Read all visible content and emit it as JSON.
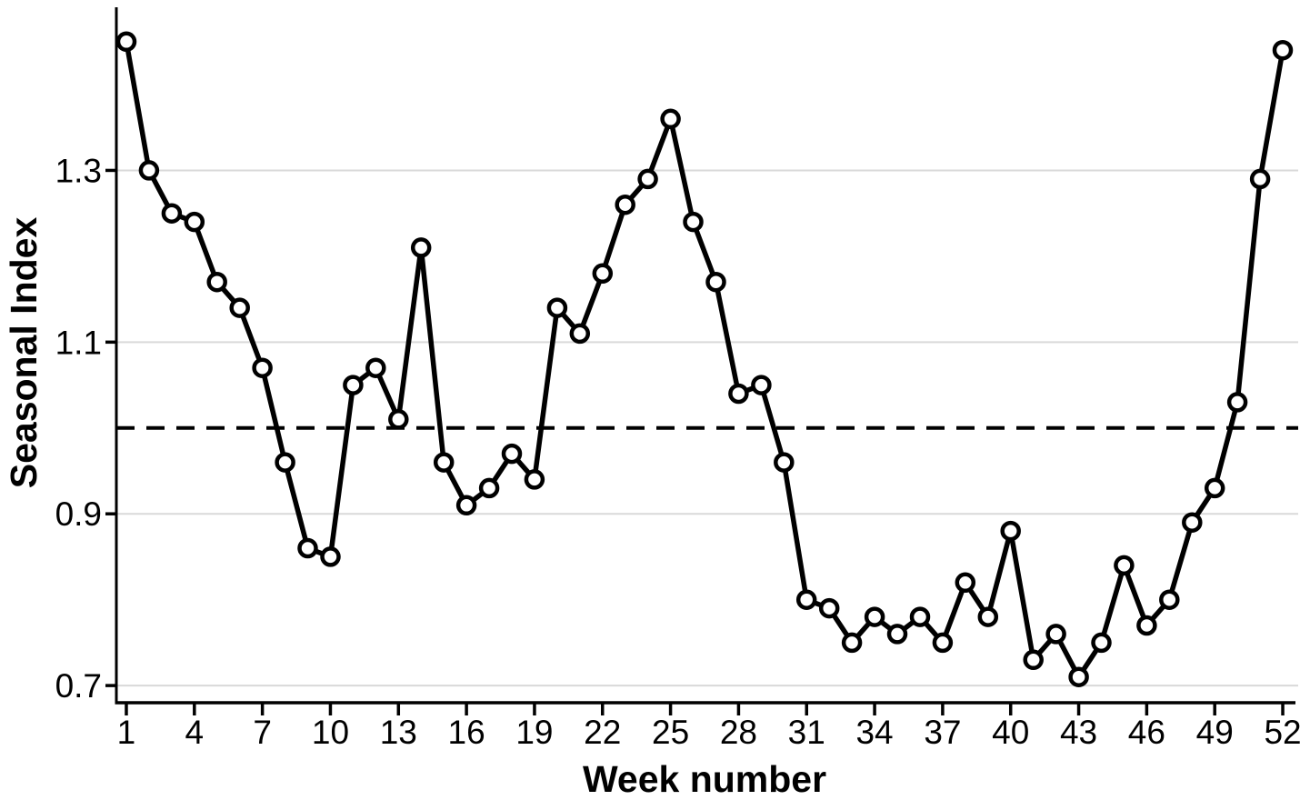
{
  "chart_data": {
    "type": "line",
    "title": "",
    "xlabel": "Week number",
    "ylabel": "Seasonal Index",
    "x": [
      1,
      2,
      3,
      4,
      5,
      6,
      7,
      8,
      9,
      10,
      11,
      12,
      13,
      14,
      15,
      16,
      17,
      18,
      19,
      20,
      21,
      22,
      23,
      24,
      25,
      26,
      27,
      28,
      29,
      30,
      31,
      32,
      33,
      34,
      35,
      36,
      37,
      38,
      39,
      40,
      41,
      42,
      43,
      44,
      45,
      46,
      47,
      48,
      49,
      50,
      51,
      52
    ],
    "series": [
      {
        "name": "Seasonal Index",
        "values": [
          1.45,
          1.3,
          1.25,
          1.24,
          1.17,
          1.14,
          1.07,
          0.96,
          0.86,
          0.85,
          1.05,
          1.07,
          1.01,
          1.21,
          0.96,
          0.91,
          0.93,
          0.97,
          0.94,
          1.14,
          1.11,
          1.18,
          1.26,
          1.29,
          1.36,
          1.24,
          1.17,
          1.04,
          1.05,
          0.96,
          0.8,
          0.79,
          0.75,
          0.78,
          0.76,
          0.78,
          0.75,
          0.82,
          0.78,
          0.88,
          0.73,
          0.76,
          0.71,
          0.75,
          0.84,
          0.77,
          0.8,
          0.89,
          0.93,
          1.03,
          1.29,
          1.44
        ]
      }
    ],
    "reference_line": {
      "value": 1.0,
      "style": "dashed"
    },
    "x_ticks": [
      1,
      4,
      7,
      10,
      13,
      16,
      19,
      22,
      25,
      28,
      31,
      34,
      37,
      40,
      43,
      46,
      49,
      52
    ],
    "x_tick_labels": [
      "1",
      "4",
      "7",
      "10",
      "13",
      "16",
      "19",
      "22",
      "25",
      "28",
      "31",
      "34",
      "37",
      "40",
      "43",
      "46",
      "49",
      "52"
    ],
    "y_ticks": [
      0.7,
      0.9,
      1.1,
      1.3
    ],
    "y_tick_labels": [
      "0.7",
      "0.9",
      "1.1",
      "1.3"
    ],
    "xlim": [
      0.56,
      52.56
    ],
    "ylim": [
      0.68,
      1.49
    ],
    "grid": "horizontal-only",
    "legend": "none",
    "marker": "open-circle",
    "colors": {
      "line": "#000000",
      "marker_fill": "#ffffff",
      "marker_stroke": "#000000",
      "grid": "#d9d9d9",
      "axis": "#000000",
      "text": "#000000",
      "background": "#ffffff"
    }
  }
}
